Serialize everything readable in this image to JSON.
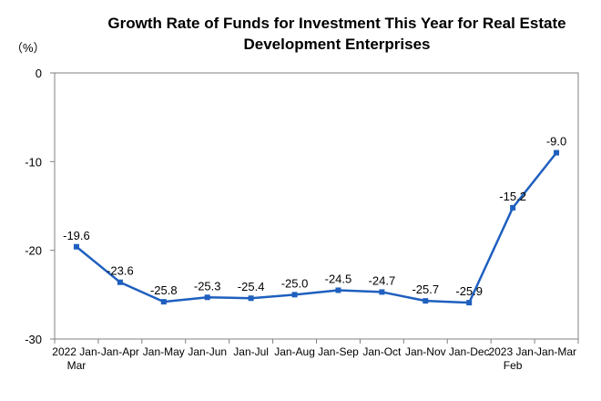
{
  "chart_data": {
    "type": "line",
    "title_lines": [
      "Growth Rate of Funds for Investment This Year for Real Estate",
      "Development Enterprises"
    ],
    "unit_label": "（%）",
    "categories": [
      [
        "2022 Jan-",
        "Mar"
      ],
      [
        "Jan-Apr"
      ],
      [
        "Jan-May"
      ],
      [
        "Jan-Jun"
      ],
      [
        "Jan-Jul"
      ],
      [
        "Jan-Aug"
      ],
      [
        "Jan-Sep"
      ],
      [
        "Jan-Oct"
      ],
      [
        "Jan-Nov"
      ],
      [
        "Jan-Dec"
      ],
      [
        "2023 Jan-",
        "Feb"
      ],
      [
        "Jan-Mar"
      ]
    ],
    "values": [
      -19.6,
      -23.6,
      -25.8,
      -25.3,
      -25.4,
      -25.0,
      -24.5,
      -24.7,
      -25.7,
      -25.9,
      -15.2,
      -9.0
    ],
    "data_labels": [
      "-19.6",
      "-23.6",
      "-25.8",
      "-25.3",
      "-25.4",
      "-25.0",
      "-24.5",
      "-24.7",
      "-25.7",
      "-25.9",
      "-15.2",
      "-9.0"
    ],
    "ylim": [
      -30,
      0
    ],
    "yticks": [
      0,
      -10,
      -20,
      -30
    ],
    "ytick_labels": [
      "0",
      "-10",
      "-20",
      "-30"
    ],
    "grid": false,
    "legend": "none",
    "line_color": "#1f5fbf"
  }
}
